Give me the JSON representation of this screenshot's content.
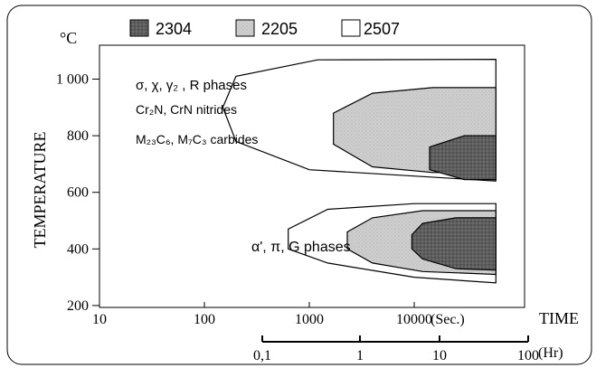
{
  "chart_data": {
    "type": "area",
    "xlabel": "TIME",
    "ylabel": "TEMPERATURE",
    "y_unit": "°C",
    "x_unit_seconds": "(Sec.)",
    "x_unit_hours": "(Hr)",
    "x_ticks": [
      "10",
      "100",
      "1000",
      "10000"
    ],
    "x_tick_values": [
      10,
      100,
      1000,
      10000
    ],
    "hr_ticks": [
      "0,1",
      "1",
      "10",
      "100"
    ],
    "hr_tick_values": [
      0.1,
      1,
      10,
      100
    ],
    "y_ticks": [
      "200",
      "400",
      "600",
      "800",
      "1 000"
    ],
    "y_tick_values": [
      200,
      400,
      600,
      800,
      1000
    ],
    "xlim": [
      10,
      100000
    ],
    "ylim": [
      0,
      1150
    ],
    "x_scale": "log",
    "legend_placement": "top",
    "legend": [
      {
        "label": "2304",
        "pattern": "dark-stipple"
      },
      {
        "label": "2205",
        "pattern": "light-stipple"
      },
      {
        "label": "2507",
        "pattern": "white"
      }
    ],
    "annotations": {
      "upper_line1": "σ, χ, γ₂ , R phases",
      "upper_line2": "Cr₂N, CrN nitrides",
      "upper_line3": "M₂₃C₆, M₇C₃ carbides",
      "lower": "α', π, G phases"
    },
    "series": [
      {
        "name": "2507",
        "region": "upper",
        "points": [
          [
            60000,
            1070
          ],
          [
            1200,
            1068
          ],
          [
            200,
            1010
          ],
          [
            150,
            900
          ],
          [
            200,
            780
          ],
          [
            1000,
            680
          ],
          [
            60000,
            640
          ]
        ]
      },
      {
        "name": "2205",
        "region": "upper",
        "points": [
          [
            60000,
            970
          ],
          [
            15000,
            970
          ],
          [
            4000,
            950
          ],
          [
            1700,
            880
          ],
          [
            1700,
            770
          ],
          [
            4000,
            690
          ],
          [
            15000,
            670
          ],
          [
            60000,
            670
          ]
        ]
      },
      {
        "name": "2304",
        "region": "upper",
        "points": [
          [
            60000,
            800
          ],
          [
            30000,
            800
          ],
          [
            14000,
            760
          ],
          [
            14000,
            680
          ],
          [
            30000,
            645
          ],
          [
            60000,
            645
          ]
        ]
      },
      {
        "name": "2507",
        "region": "lower",
        "points": [
          [
            60000,
            560
          ],
          [
            10000,
            560
          ],
          [
            1500,
            540
          ],
          [
            630,
            470
          ],
          [
            630,
            400
          ],
          [
            1500,
            350
          ],
          [
            10000,
            300
          ],
          [
            60000,
            280
          ]
        ]
      },
      {
        "name": "2205",
        "region": "lower",
        "points": [
          [
            60000,
            535
          ],
          [
            12000,
            535
          ],
          [
            4000,
            510
          ],
          [
            2300,
            460
          ],
          [
            2300,
            400
          ],
          [
            4000,
            350
          ],
          [
            12000,
            320
          ],
          [
            60000,
            310
          ]
        ]
      },
      {
        "name": "2304",
        "region": "lower",
        "points": [
          [
            60000,
            510
          ],
          [
            25000,
            510
          ],
          [
            12000,
            490
          ],
          [
            9500,
            450
          ],
          [
            9500,
            400
          ],
          [
            12000,
            365
          ],
          [
            25000,
            330
          ],
          [
            60000,
            325
          ]
        ]
      }
    ]
  }
}
